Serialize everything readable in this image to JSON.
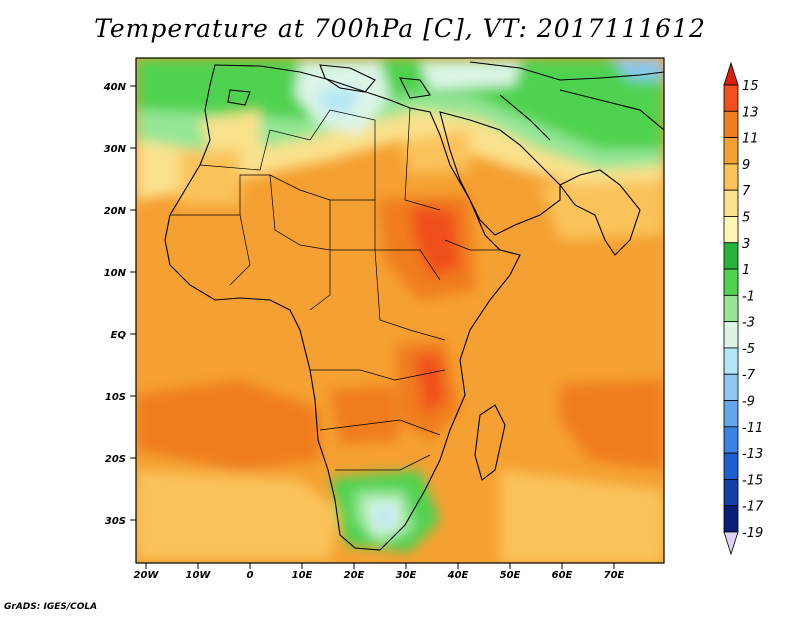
{
  "title": "Temperature at 700hPa [C], VT: 2017111612",
  "credit": "GrADS: IGES/COLA",
  "map": {
    "lat_labels": [
      "40N",
      "30N",
      "20N",
      "10N",
      "EQ",
      "10S",
      "20S",
      "30S"
    ],
    "lon_labels": [
      "20W",
      "10W",
      "0",
      "10E",
      "20E",
      "30E",
      "40E",
      "50E",
      "60E",
      "70E"
    ]
  },
  "colorbar": {
    "labels": [
      "15",
      "13",
      "11",
      "9",
      "7",
      "5",
      "3",
      "1",
      "-1",
      "-3",
      "-5",
      "-7",
      "-9",
      "-11",
      "-13",
      "-15",
      "-17",
      "-19"
    ],
    "colors": [
      "#dc1e0f",
      "#f0501e",
      "#f07d1e",
      "#f5a032",
      "#fac35a",
      "#fae18c",
      "#fff5b4",
      "#28b43c",
      "#50d250",
      "#96e696",
      "#dcf5e6",
      "#b4e6f5",
      "#8cc8f0",
      "#64a5eb",
      "#3c82e1",
      "#1e5fcd",
      "#1441a5",
      "#0a1e78",
      "#dcd2f5"
    ]
  }
}
